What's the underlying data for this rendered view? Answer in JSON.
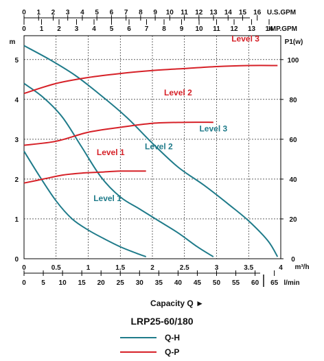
{
  "chart_data": {
    "type": "line",
    "title": "LRP25-60/180",
    "capacity_label": "Capacity Q ►",
    "colors": {
      "qh": "#1f7b8a",
      "qp": "#d62027",
      "grid": "#000000"
    },
    "axes": {
      "left": {
        "label": "m",
        "ticks": [
          "0",
          "1",
          "2",
          "3",
          "4",
          "5"
        ],
        "range": [
          0,
          5.6
        ]
      },
      "right": {
        "label": "P1(w)",
        "ticks": [
          "0",
          "20",
          "40",
          "60",
          "80",
          "100"
        ],
        "range": [
          0,
          112
        ]
      },
      "bottom_m3h": {
        "unit": "m³/h",
        "ticks": [
          "0",
          "0.5",
          "1",
          "1.5",
          "2",
          "2.5",
          "3",
          "3.5",
          "4"
        ],
        "range": [
          0,
          4
        ]
      },
      "bottom_lmin": {
        "unit": "l/min",
        "ticks": [
          "0",
          "5",
          "10",
          "15",
          "20",
          "25",
          "30",
          "35",
          "40",
          "45",
          "50",
          "55",
          "60",
          "65"
        ]
      },
      "top_usgpm": {
        "unit": "U.S.GPM",
        "ticks": [
          "0",
          "1",
          "2",
          "3",
          "4",
          "5",
          "6",
          "7",
          "8",
          "9",
          "10",
          "11",
          "12",
          "13",
          "14",
          "15",
          "16"
        ]
      },
      "top_impgpm": {
        "unit": "IMP.GPM",
        "ticks": [
          "0",
          "1",
          "2",
          "3",
          "4",
          "5",
          "6",
          "7",
          "8",
          "9",
          "10",
          "11",
          "12",
          "13",
          "14"
        ]
      }
    },
    "series": [
      {
        "name": "Level 1",
        "kind": "Q-H",
        "x": [
          0,
          0.25,
          0.5,
          0.75,
          1.0,
          1.25,
          1.5,
          1.75,
          1.9
        ],
        "y": [
          2.7,
          2.05,
          1.45,
          1.0,
          0.72,
          0.5,
          0.3,
          0.14,
          0.05
        ]
      },
      {
        "name": "Level 2",
        "kind": "Q-H",
        "x": [
          0,
          0.3,
          0.6,
          0.9,
          1.2,
          1.5,
          1.8,
          2.1,
          2.4,
          2.7,
          2.95
        ],
        "y": [
          4.4,
          4.05,
          3.55,
          2.8,
          2.05,
          1.55,
          1.25,
          0.95,
          0.65,
          0.3,
          0.05
        ]
      },
      {
        "name": "Level 3",
        "kind": "Q-H",
        "x": [
          0,
          0.4,
          0.8,
          1.2,
          1.6,
          2.0,
          2.4,
          2.8,
          3.2,
          3.5,
          3.8,
          3.95
        ],
        "y": [
          5.35,
          5.0,
          4.6,
          4.1,
          3.55,
          2.9,
          2.3,
          1.85,
          1.35,
          0.95,
          0.45,
          0.05
        ]
      },
      {
        "name": "Level 1",
        "kind": "Q-P",
        "x": [
          0,
          0.3,
          0.6,
          0.9,
          1.2,
          1.5,
          1.9
        ],
        "y": [
          38,
          40,
          42,
          43,
          43.5,
          44,
          44
        ]
      },
      {
        "name": "Level 2",
        "kind": "Q-P",
        "x": [
          0,
          0.5,
          1.0,
          1.5,
          2.0,
          2.5,
          2.95
        ],
        "y": [
          57,
          59,
          63.5,
          66,
          68,
          68.5,
          68.5
        ]
      },
      {
        "name": "Level 3",
        "kind": "Q-P",
        "x": [
          0,
          0.5,
          1.0,
          1.5,
          2.0,
          2.5,
          3.0,
          3.5,
          3.95
        ],
        "y": [
          83,
          88,
          91,
          93,
          94.5,
          95.5,
          96.5,
          97,
          97
        ]
      }
    ],
    "curve_labels": [
      {
        "text": "Level 1",
        "color": "teal",
        "at": [
          1.3,
          1.45
        ]
      },
      {
        "text": "Level 2",
        "color": "teal",
        "at": [
          2.1,
          2.75
        ]
      },
      {
        "text": "Level 3",
        "color": "teal",
        "at": [
          2.95,
          3.2
        ]
      },
      {
        "text": "Level 1",
        "color": "red",
        "at": [
          1.35,
          52
        ]
      },
      {
        "text": "Level 2",
        "color": "red",
        "at": [
          2.4,
          82
        ]
      },
      {
        "text": "Level 3",
        "color": "red",
        "at": [
          3.45,
          109
        ]
      }
    ],
    "legend": [
      {
        "label": "Q-H",
        "color": "teal"
      },
      {
        "label": "Q-P",
        "color": "red"
      }
    ],
    "grid": true
  }
}
